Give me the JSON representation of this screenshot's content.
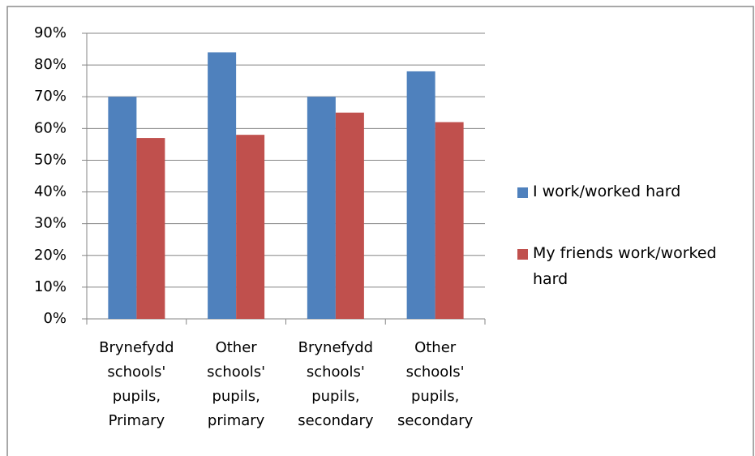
{
  "chart_data": {
    "type": "bar",
    "categories": [
      "Brynefydd schools' pupils, Primary",
      "Other schools' pupils, primary",
      "Brynefydd schools' pupils, secondary",
      "Other schools' pupils, secondary"
    ],
    "series": [
      {
        "name": "I work/worked hard",
        "color": "#4f81bd",
        "values": [
          70,
          84,
          70,
          78
        ]
      },
      {
        "name": "My friends work/worked hard",
        "color": "#c0504d",
        "values": [
          57,
          58,
          65,
          62
        ]
      }
    ],
    "ylim": [
      0,
      90
    ],
    "yticks": [
      {
        "value": 0,
        "label": "0%"
      },
      {
        "value": 10,
        "label": "10%"
      },
      {
        "value": 20,
        "label": "20%"
      },
      {
        "value": 30,
        "label": "30%"
      },
      {
        "value": 40,
        "label": "40%"
      },
      {
        "value": 50,
        "label": "50%"
      },
      {
        "value": 60,
        "label": "60%"
      },
      {
        "value": 70,
        "label": "70%"
      },
      {
        "value": 80,
        "label": "80%"
      },
      {
        "value": 90,
        "label": "90%"
      }
    ],
    "grid": true,
    "legend": "right"
  }
}
